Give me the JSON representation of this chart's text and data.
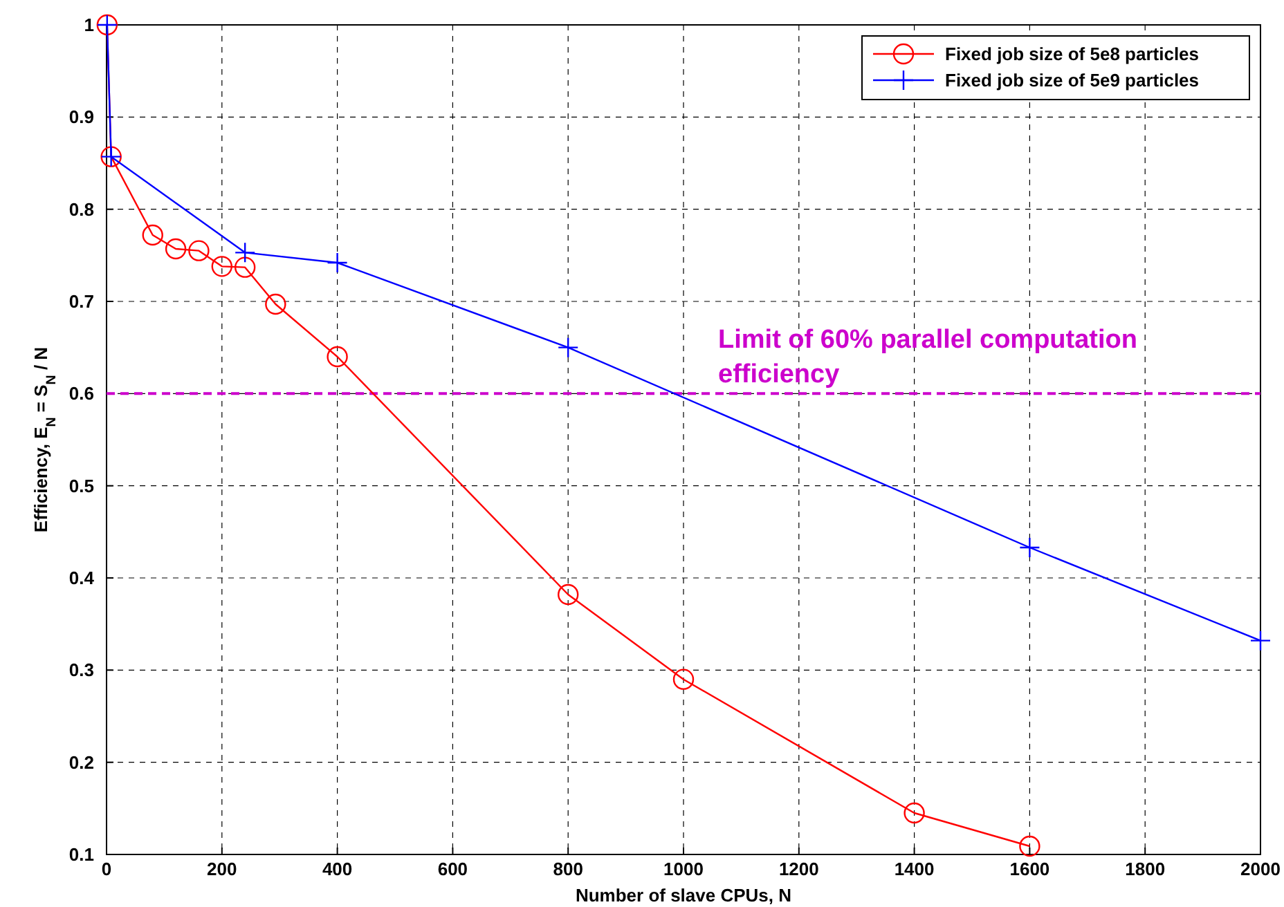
{
  "chart_data": {
    "type": "line",
    "xlabel": "Number of slave CPUs, N",
    "ylabel": "Efficiency, E$_{N}$ = S$_{N}$ / N",
    "xlim": [
      0,
      2000
    ],
    "xticks": [
      0,
      200,
      400,
      600,
      800,
      1000,
      1200,
      1400,
      1600,
      1800,
      2000
    ],
    "ylim": [
      0.1,
      1
    ],
    "yticks": [
      0.1,
      0.2,
      0.3,
      0.4,
      0.5,
      0.6,
      0.7,
      0.8,
      0.9,
      1
    ],
    "grid": true,
    "legend": "top right",
    "series": [
      {
        "name": "Fixed job size of 5e8 particles",
        "color": "#ff0000",
        "marker": "circle",
        "x": [
          1,
          8,
          80,
          120,
          160,
          200,
          240,
          293,
          400,
          800,
          1000,
          1400,
          1600
        ],
        "values": [
          1,
          0.857,
          0.772,
          0.757,
          0.755,
          0.738,
          0.737,
          0.697,
          0.64,
          0.382,
          0.29,
          0.145,
          0.109
        ]
      },
      {
        "name": "Fixed job size of 5e9 particles",
        "color": "#0000ff",
        "marker": "cross",
        "x": [
          1,
          8,
          240,
          400,
          800,
          1600,
          2000
        ],
        "values": [
          1,
          0.857,
          0.753,
          0.742,
          0.65,
          0.433,
          0.332
        ]
      }
    ],
    "ref_lines": [
      {
        "axis": "y",
        "value": 0.6,
        "label": "Limit of 60% parallel computation efficiency",
        "color": "#cc00cc",
        "line_style": "dashed"
      }
    ]
  }
}
